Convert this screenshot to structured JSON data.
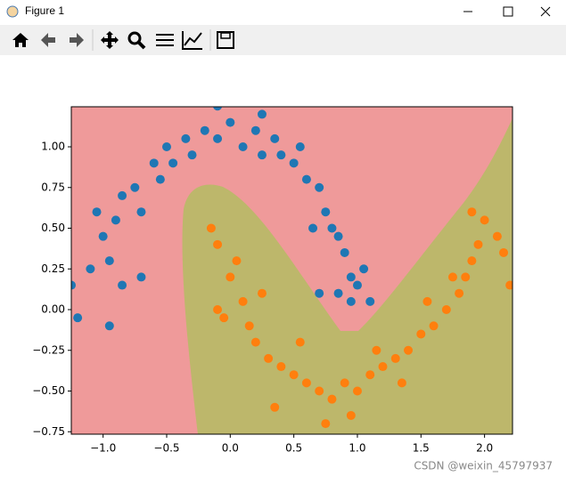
{
  "window": {
    "title": "Figure 1"
  },
  "watermark": "CSDN @weixin_45797937",
  "chart_data": {
    "type": "scatter",
    "xlim": [
      -1.25,
      2.22
    ],
    "ylim": [
      -0.765,
      1.246
    ],
    "xticks": [
      {
        "value": -1,
        "label": "−1.0"
      },
      {
        "value": -0.5,
        "label": "−0.5"
      },
      {
        "value": 0,
        "label": "0.0"
      },
      {
        "value": 0.5,
        "label": "0.5"
      },
      {
        "value": 1,
        "label": "1.0"
      },
      {
        "value": 1.5,
        "label": "1.5"
      },
      {
        "value": 2,
        "label": "2.0"
      }
    ],
    "yticks": [
      {
        "value": -0.75,
        "label": "−0.75"
      },
      {
        "value": -0.5,
        "label": "−0.50"
      },
      {
        "value": -0.25,
        "label": "−0.25"
      },
      {
        "value": 0,
        "label": "0.00"
      },
      {
        "value": 0.25,
        "label": "0.25"
      },
      {
        "value": 0.5,
        "label": "0.50"
      },
      {
        "value": 0.75,
        "label": "0.75"
      },
      {
        "value": 1,
        "label": "1.00"
      }
    ],
    "region_colors": [
      "#ef9a9a",
      "#bdb76b"
    ],
    "series": [
      {
        "color": "#1f77b4",
        "x": [
          -1.0,
          -0.95,
          -1.1,
          -0.9,
          -0.85,
          -0.75,
          -0.7,
          -0.6,
          -0.55,
          -0.5,
          -0.45,
          -0.35,
          -0.3,
          -0.2,
          -0.1,
          0.0,
          0.1,
          0.2,
          0.25,
          0.35,
          0.4,
          0.5,
          0.55,
          0.6,
          0.7,
          0.75,
          0.8,
          0.85,
          0.9,
          0.95,
          1.0,
          1.05,
          1.1,
          0.85,
          -1.25,
          -1.2,
          -0.95,
          -0.7,
          -0.85,
          -1.05,
          0.65,
          0.95,
          0.7,
          -0.1,
          0.25
        ],
        "values": [
          0.45,
          0.3,
          0.25,
          0.55,
          0.7,
          0.75,
          0.6,
          0.9,
          0.8,
          1.0,
          0.9,
          1.05,
          0.95,
          1.1,
          1.05,
          1.15,
          1.0,
          1.1,
          0.95,
          1.05,
          0.95,
          0.9,
          1.0,
          0.8,
          0.75,
          0.6,
          0.5,
          0.45,
          0.35,
          0.2,
          0.15,
          0.25,
          0.05,
          0.1,
          0.15,
          -0.05,
          -0.1,
          0.2,
          0.15,
          0.6,
          0.5,
          0.05,
          0.1,
          1.25,
          1.2
        ]
      },
      {
        "color": "#ff7f0e",
        "x": [
          0.0,
          0.05,
          -0.1,
          -0.15,
          0.1,
          0.15,
          0.2,
          0.3,
          0.4,
          0.5,
          0.6,
          0.7,
          0.8,
          0.9,
          1.0,
          1.1,
          1.2,
          1.3,
          1.4,
          1.5,
          1.6,
          1.7,
          1.8,
          1.85,
          1.9,
          1.95,
          2.0,
          1.9,
          2.1,
          2.2,
          1.75,
          1.55,
          0.35,
          0.75,
          0.95,
          -0.1,
          0.25,
          -0.05,
          1.35,
          2.15,
          0.55,
          1.15
        ],
        "values": [
          0.2,
          0.3,
          0.4,
          0.5,
          0.05,
          -0.1,
          -0.2,
          -0.3,
          -0.35,
          -0.4,
          -0.45,
          -0.5,
          -0.55,
          -0.45,
          -0.5,
          -0.4,
          -0.35,
          -0.3,
          -0.25,
          -0.15,
          -0.1,
          0.0,
          0.1,
          0.2,
          0.3,
          0.4,
          0.55,
          0.6,
          0.45,
          0.15,
          0.2,
          0.05,
          -0.6,
          -0.7,
          -0.65,
          0.0,
          0.1,
          -0.05,
          -0.45,
          0.35,
          -0.2,
          -0.25
        ]
      }
    ]
  }
}
